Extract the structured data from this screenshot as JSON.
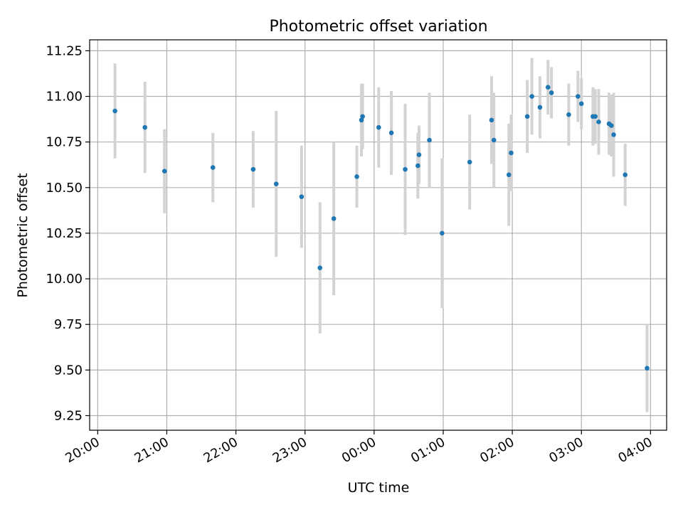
{
  "chart_data": {
    "type": "scatter",
    "title": "Photometric offset variation",
    "xlabel": "UTC time",
    "ylabel": "Photometric offset",
    "x_is_time": true,
    "xlim": [
      "19:53",
      "04:14"
    ],
    "ylim": [
      9.17,
      11.31
    ],
    "x_ticks": [
      "20:00",
      "21:00",
      "22:00",
      "23:00",
      "00:00",
      "01:00",
      "02:00",
      "03:00",
      "04:00"
    ],
    "y_ticks": [
      "9.25",
      "9.50",
      "9.75",
      "10.00",
      "10.25",
      "10.50",
      "10.75",
      "11.00",
      "11.25"
    ],
    "grid": true,
    "point_color": "#1f77b4",
    "errorbar_color": "#d3d3d3",
    "points": [
      {
        "time": "20:15",
        "y": 10.92,
        "err": 0.26
      },
      {
        "time": "20:41",
        "y": 10.83,
        "err": 0.25
      },
      {
        "time": "20:58",
        "y": 10.59,
        "err": 0.23
      },
      {
        "time": "21:40",
        "y": 10.61,
        "err": 0.19
      },
      {
        "time": "22:15",
        "y": 10.6,
        "err": 0.21
      },
      {
        "time": "22:35",
        "y": 10.52,
        "err": 0.4
      },
      {
        "time": "22:57",
        "y": 10.45,
        "err": 0.28
      },
      {
        "time": "23:13",
        "y": 10.06,
        "err": 0.36
      },
      {
        "time": "23:25",
        "y": 10.33,
        "err": 0.42
      },
      {
        "time": "23:45",
        "y": 10.56,
        "err": 0.17
      },
      {
        "time": "23:49",
        "y": 10.87,
        "err": 0.2
      },
      {
        "time": "23:50",
        "y": 10.89,
        "err": 0.18
      },
      {
        "time": "00:04",
        "y": 10.83,
        "err": 0.22
      },
      {
        "time": "00:15",
        "y": 10.8,
        "err": 0.23
      },
      {
        "time": "00:27",
        "y": 10.6,
        "err": 0.36
      },
      {
        "time": "00:38",
        "y": 10.62,
        "err": 0.18
      },
      {
        "time": "00:39",
        "y": 10.68,
        "err": 0.16
      },
      {
        "time": "00:48",
        "y": 10.76,
        "err": 0.26
      },
      {
        "time": "00:59",
        "y": 10.25,
        "err": 0.41
      },
      {
        "time": "01:23",
        "y": 10.64,
        "err": 0.26
      },
      {
        "time": "01:42",
        "y": 10.87,
        "err": 0.24
      },
      {
        "time": "01:44",
        "y": 10.76,
        "err": 0.26
      },
      {
        "time": "01:57",
        "y": 10.57,
        "err": 0.28
      },
      {
        "time": "01:59",
        "y": 10.69,
        "err": 0.21
      },
      {
        "time": "02:13",
        "y": 10.89,
        "err": 0.2
      },
      {
        "time": "02:17",
        "y": 11.0,
        "err": 0.21
      },
      {
        "time": "02:24",
        "y": 10.94,
        "err": 0.17
      },
      {
        "time": "02:31",
        "y": 11.05,
        "err": 0.15
      },
      {
        "time": "02:34",
        "y": 11.02,
        "err": 0.14
      },
      {
        "time": "02:49",
        "y": 10.9,
        "err": 0.17
      },
      {
        "time": "02:57",
        "y": 11.0,
        "err": 0.14
      },
      {
        "time": "03:00",
        "y": 10.96,
        "err": 0.14
      },
      {
        "time": "03:10",
        "y": 10.89,
        "err": 0.16
      },
      {
        "time": "03:12",
        "y": 10.89,
        "err": 0.15
      },
      {
        "time": "03:15",
        "y": 10.86,
        "err": 0.18
      },
      {
        "time": "03:24",
        "y": 10.85,
        "err": 0.17
      },
      {
        "time": "03:26",
        "y": 10.84,
        "err": 0.17
      },
      {
        "time": "03:28",
        "y": 10.79,
        "err": 0.23
      },
      {
        "time": "03:38",
        "y": 10.57,
        "err": 0.17
      },
      {
        "time": "03:57",
        "y": 9.51,
        "err": 0.24
      }
    ]
  }
}
